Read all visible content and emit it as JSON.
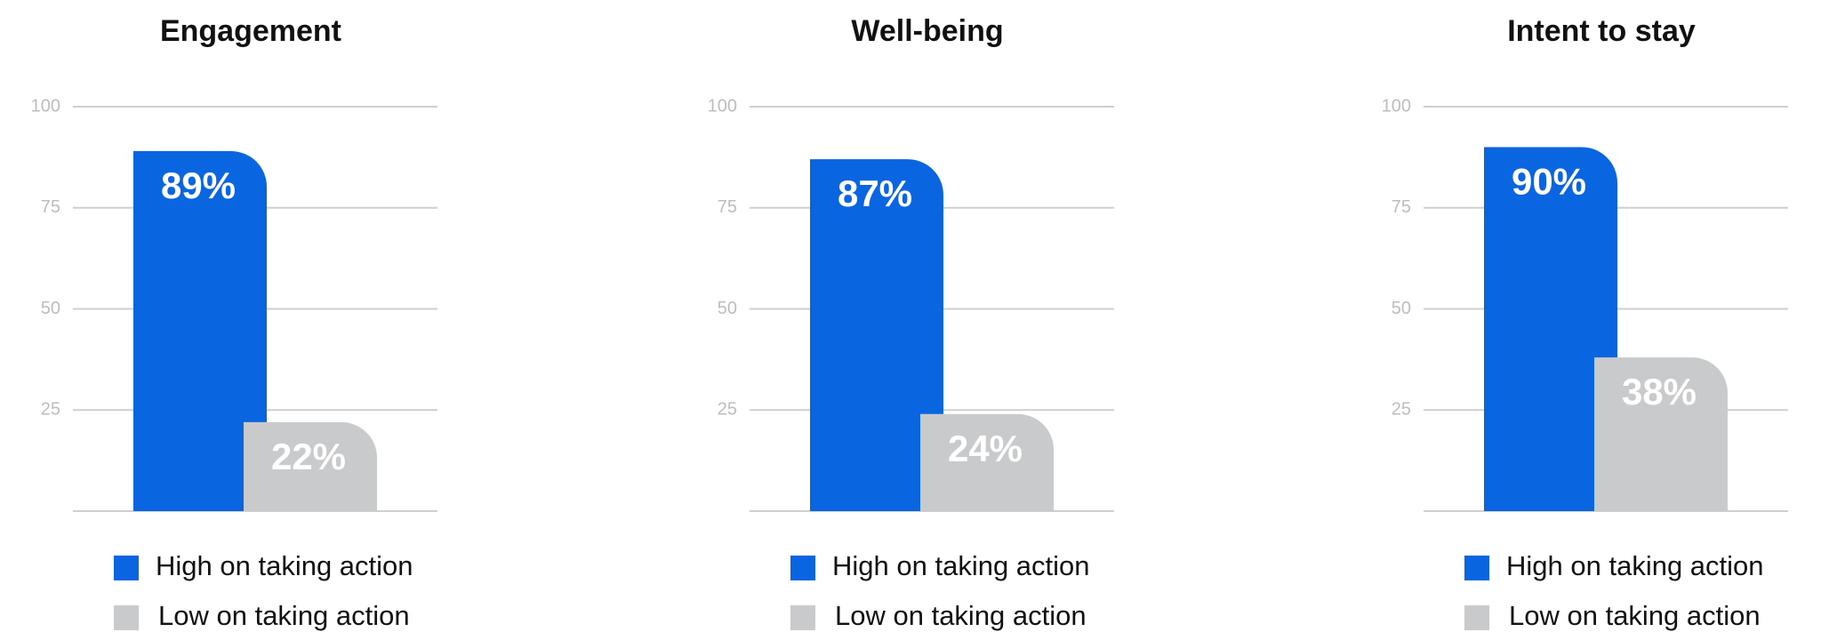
{
  "chart_data": [
    {
      "type": "bar",
      "title": "Engagement",
      "ylim": [
        0,
        100
      ],
      "yticks": [
        25,
        50,
        75,
        100
      ],
      "grid": true,
      "series": [
        {
          "name": "High on taking action",
          "color": "#0a66e0",
          "values": [
            89
          ],
          "value_labels": [
            "89%"
          ]
        },
        {
          "name": "Low on taking action",
          "color": "#c8cacc",
          "values": [
            22
          ],
          "value_labels": [
            "22%"
          ]
        }
      ]
    },
    {
      "type": "bar",
      "title": "Well-being",
      "ylim": [
        0,
        100
      ],
      "yticks": [
        25,
        50,
        75,
        100
      ],
      "grid": true,
      "series": [
        {
          "name": "High on taking action",
          "color": "#0a66e0",
          "values": [
            87
          ],
          "value_labels": [
            "87%"
          ]
        },
        {
          "name": "Low on taking action",
          "color": "#c8cacc",
          "values": [
            24
          ],
          "value_labels": [
            "24%"
          ]
        }
      ]
    },
    {
      "type": "bar",
      "title": "Intent to stay",
      "ylim": [
        0,
        100
      ],
      "yticks": [
        25,
        50,
        75,
        100
      ],
      "grid": true,
      "series": [
        {
          "name": "High on taking action",
          "color": "#0a66e0",
          "values": [
            90
          ],
          "value_labels": [
            "90%"
          ]
        },
        {
          "name": "Low on taking action",
          "color": "#c8cacc",
          "values": [
            38
          ],
          "value_labels": [
            "38%"
          ]
        }
      ]
    }
  ]
}
